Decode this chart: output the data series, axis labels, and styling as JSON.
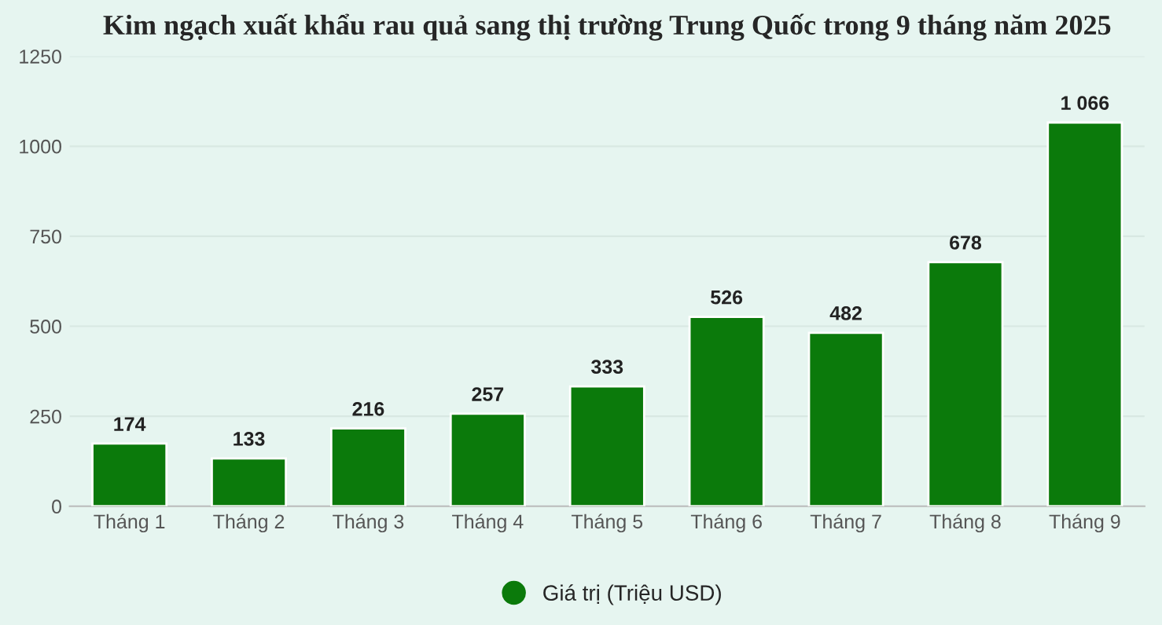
{
  "chart_data": {
    "type": "bar",
    "title": "Kim ngạch xuất khẩu rau quả sang thị trường Trung Quốc trong 9 tháng năm 2025",
    "categories": [
      "Tháng 1",
      "Tháng 2",
      "Tháng 3",
      "Tháng 4",
      "Tháng 5",
      "Tháng 6",
      "Tháng 7",
      "Tháng 8",
      "Tháng 9"
    ],
    "series": [
      {
        "name": "Giá trị (Triệu USD)",
        "color": "#0b7a0b",
        "values": [
          174,
          133,
          216,
          257,
          333,
          526,
          482,
          678,
          1066
        ],
        "value_labels": [
          "174",
          "133",
          "216",
          "257",
          "333",
          "526",
          "482",
          "678",
          "1 066"
        ]
      }
    ],
    "ylim": [
      0,
      1250
    ],
    "yticks": [
      0,
      250,
      500,
      750,
      1000,
      1250
    ],
    "grid": "y",
    "legend": "bottom",
    "marker": "circle"
  }
}
